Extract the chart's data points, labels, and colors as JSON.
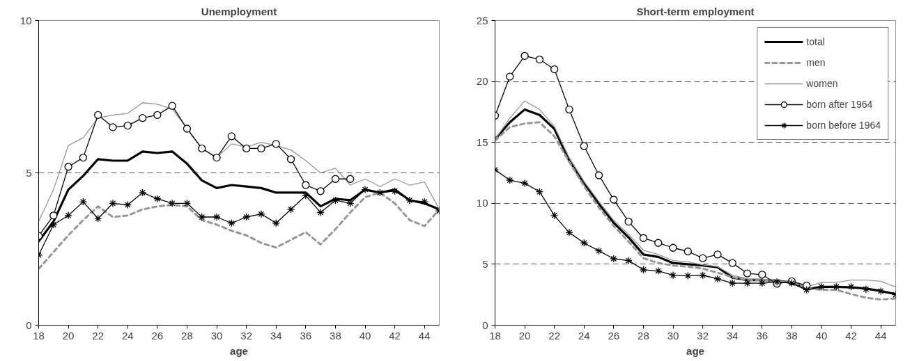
{
  "chart_data": [
    {
      "type": "line",
      "title": "Unemployment",
      "xlabel": "age",
      "x": [
        18,
        19,
        20,
        21,
        22,
        23,
        24,
        25,
        26,
        27,
        28,
        29,
        30,
        31,
        32,
        33,
        34,
        35,
        36,
        37,
        38,
        39,
        40,
        41,
        42,
        43,
        44,
        45
      ],
      "xlim": [
        18,
        45
      ],
      "xticks": [
        18,
        20,
        22,
        24,
        26,
        28,
        30,
        32,
        34,
        36,
        38,
        40,
        42,
        44
      ],
      "ylim": [
        0,
        10
      ],
      "yticks": [
        0,
        5,
        10
      ],
      "grid": "y",
      "legend": false,
      "series": [
        {
          "color": "#000000",
          "line_style": "solid",
          "marker": "none",
          "values": [
            2.75,
            3.4,
            4.45,
            4.9,
            5.45,
            5.4,
            5.4,
            5.7,
            5.65,
            5.7,
            5.3,
            4.75,
            4.5,
            4.6,
            4.55,
            4.5,
            4.35,
            4.35,
            4.35,
            3.9,
            4.15,
            4.1,
            4.45,
            4.35,
            4.45,
            4.1,
            4.0,
            3.8
          ]
        },
        {
          "color": "#969696",
          "line_style": "dashed",
          "marker": "none",
          "values": [
            1.85,
            2.4,
            2.95,
            3.45,
            3.9,
            3.55,
            3.6,
            3.8,
            3.9,
            3.95,
            3.9,
            3.45,
            3.3,
            3.1,
            2.95,
            2.7,
            2.55,
            2.8,
            3.05,
            2.65,
            3.15,
            3.7,
            4.2,
            4.35,
            4.0,
            3.45,
            3.25,
            3.8
          ]
        },
        {
          "color": "#969696",
          "line_style": "solid",
          "marker": "none",
          "values": [
            3.4,
            4.45,
            5.9,
            6.15,
            6.8,
            6.9,
            6.95,
            7.3,
            7.25,
            7.1,
            6.45,
            5.8,
            5.5,
            5.95,
            5.85,
            6.0,
            5.9,
            5.75,
            5.4,
            5.0,
            5.15,
            4.6,
            4.8,
            4.55,
            4.8,
            4.6,
            4.7,
            3.8
          ]
        },
        {
          "color": "#000000",
          "line_style": "solid",
          "marker": "circle",
          "values": [
            2.93,
            3.6,
            5.2,
            5.5,
            6.9,
            6.5,
            6.55,
            6.8,
            6.9,
            7.2,
            6.45,
            5.8,
            5.5,
            6.2,
            5.8,
            5.8,
            5.95,
            5.45,
            4.6,
            4.4,
            4.8,
            4.8,
            null,
            null,
            null,
            null,
            null,
            null
          ]
        },
        {
          "color": "#000000",
          "line_style": "solid",
          "marker": "cross",
          "values": [
            2.3,
            3.3,
            3.6,
            4.05,
            3.5,
            4.0,
            3.95,
            4.35,
            4.15,
            4.0,
            4.0,
            3.55,
            3.55,
            3.35,
            3.55,
            3.65,
            3.35,
            3.8,
            4.25,
            3.7,
            4.1,
            4.0,
            4.45,
            4.35,
            4.4,
            4.1,
            4.05,
            3.75
          ]
        }
      ]
    },
    {
      "type": "line",
      "title": "Short-term employment",
      "xlabel": "age",
      "x": [
        18,
        19,
        20,
        21,
        22,
        23,
        24,
        25,
        26,
        27,
        28,
        29,
        30,
        31,
        32,
        33,
        34,
        35,
        36,
        37,
        38,
        39,
        40,
        41,
        42,
        43,
        44,
        45
      ],
      "xlim": [
        18,
        45
      ],
      "xticks": [
        18,
        20,
        22,
        24,
        26,
        28,
        30,
        32,
        34,
        36,
        38,
        40,
        42,
        44
      ],
      "ylim": [
        0,
        25
      ],
      "yticks": [
        0,
        5,
        10,
        15,
        20,
        25
      ],
      "grid": "y",
      "legend": "top right",
      "series": [
        {
          "name": "total",
          "color": "#000000",
          "line_style": "solid",
          "marker": "none",
          "values": [
            15.25,
            16.65,
            17.7,
            17.25,
            16.1,
            13.5,
            11.65,
            9.95,
            8.4,
            7.2,
            5.8,
            5.6,
            5.1,
            5.0,
            4.9,
            4.75,
            3.9,
            3.7,
            3.7,
            3.65,
            3.5,
            2.95,
            3.15,
            3.15,
            3.1,
            3.0,
            2.8,
            2.55
          ]
        },
        {
          "name": "men",
          "color": "#969696",
          "line_style": "dashed",
          "marker": "none",
          "values": [
            15.15,
            16.25,
            16.55,
            16.65,
            15.5,
            13.4,
            11.4,
            9.65,
            8.15,
            6.85,
            5.5,
            5.1,
            4.9,
            4.8,
            4.65,
            4.3,
            3.95,
            3.7,
            3.7,
            3.6,
            3.5,
            3.05,
            2.9,
            2.9,
            2.55,
            2.25,
            2.1,
            2.2
          ]
        },
        {
          "name": "women",
          "color": "#969696",
          "line_style": "solid",
          "marker": "none",
          "values": [
            15.25,
            17.0,
            18.4,
            17.7,
            16.3,
            13.75,
            11.8,
            10.15,
            8.6,
            7.45,
            6.15,
            5.8,
            5.3,
            5.2,
            4.95,
            4.8,
            4.1,
            3.8,
            3.8,
            3.6,
            3.6,
            3.15,
            3.5,
            3.5,
            3.7,
            3.7,
            3.6,
            3.15
          ]
        },
        {
          "name": "born after 1964",
          "color": "#000000",
          "line_style": "solid",
          "marker": "circle",
          "values": [
            17.2,
            20.4,
            22.1,
            21.8,
            21.0,
            17.7,
            14.7,
            12.3,
            10.3,
            8.5,
            7.15,
            6.75,
            6.35,
            6.05,
            5.5,
            5.8,
            5.1,
            4.25,
            4.15,
            3.4,
            3.6,
            3.25,
            null,
            null,
            null,
            null,
            null,
            null
          ]
        },
        {
          "name": "born before 1964",
          "color": "#000000",
          "line_style": "solid",
          "marker": "cross",
          "values": [
            12.75,
            11.9,
            11.65,
            10.95,
            9.0,
            7.6,
            6.75,
            6.1,
            5.45,
            5.3,
            4.55,
            4.45,
            4.1,
            4.05,
            4.1,
            3.8,
            3.45,
            3.45,
            3.45,
            3.55,
            3.45,
            2.9,
            3.15,
            3.15,
            3.15,
            2.95,
            2.8,
            2.5
          ]
        }
      ]
    }
  ]
}
